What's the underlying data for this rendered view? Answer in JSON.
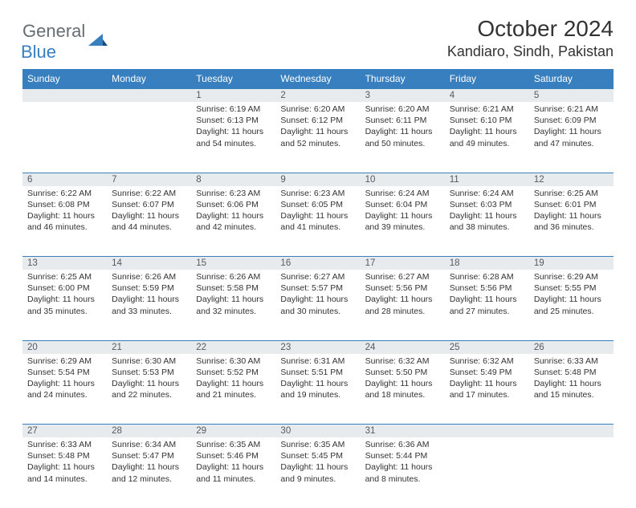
{
  "brand": {
    "part1": "General",
    "part2": "Blue"
  },
  "title": "October 2024",
  "location": "Kandiaro, Sindh, Pakistan",
  "colors": {
    "header_bg": "#377fbf",
    "daynum_bg": "#e8ebed",
    "border": "#377fbf",
    "text": "#333333"
  },
  "typography": {
    "title_size": 28,
    "location_size": 18,
    "header_size": 12,
    "cell_size": 10.5
  },
  "day_headers": [
    "Sunday",
    "Monday",
    "Tuesday",
    "Wednesday",
    "Thursday",
    "Friday",
    "Saturday"
  ],
  "weeks": [
    {
      "nums": [
        "",
        "",
        "1",
        "2",
        "3",
        "4",
        "5"
      ],
      "cells": [
        null,
        null,
        {
          "sunrise": "Sunrise: 6:19 AM",
          "sunset": "Sunset: 6:13 PM",
          "daylight": "Daylight: 11 hours and 54 minutes."
        },
        {
          "sunrise": "Sunrise: 6:20 AM",
          "sunset": "Sunset: 6:12 PM",
          "daylight": "Daylight: 11 hours and 52 minutes."
        },
        {
          "sunrise": "Sunrise: 6:20 AM",
          "sunset": "Sunset: 6:11 PM",
          "daylight": "Daylight: 11 hours and 50 minutes."
        },
        {
          "sunrise": "Sunrise: 6:21 AM",
          "sunset": "Sunset: 6:10 PM",
          "daylight": "Daylight: 11 hours and 49 minutes."
        },
        {
          "sunrise": "Sunrise: 6:21 AM",
          "sunset": "Sunset: 6:09 PM",
          "daylight": "Daylight: 11 hours and 47 minutes."
        }
      ]
    },
    {
      "nums": [
        "6",
        "7",
        "8",
        "9",
        "10",
        "11",
        "12"
      ],
      "cells": [
        {
          "sunrise": "Sunrise: 6:22 AM",
          "sunset": "Sunset: 6:08 PM",
          "daylight": "Daylight: 11 hours and 46 minutes."
        },
        {
          "sunrise": "Sunrise: 6:22 AM",
          "sunset": "Sunset: 6:07 PM",
          "daylight": "Daylight: 11 hours and 44 minutes."
        },
        {
          "sunrise": "Sunrise: 6:23 AM",
          "sunset": "Sunset: 6:06 PM",
          "daylight": "Daylight: 11 hours and 42 minutes."
        },
        {
          "sunrise": "Sunrise: 6:23 AM",
          "sunset": "Sunset: 6:05 PM",
          "daylight": "Daylight: 11 hours and 41 minutes."
        },
        {
          "sunrise": "Sunrise: 6:24 AM",
          "sunset": "Sunset: 6:04 PM",
          "daylight": "Daylight: 11 hours and 39 minutes."
        },
        {
          "sunrise": "Sunrise: 6:24 AM",
          "sunset": "Sunset: 6:03 PM",
          "daylight": "Daylight: 11 hours and 38 minutes."
        },
        {
          "sunrise": "Sunrise: 6:25 AM",
          "sunset": "Sunset: 6:01 PM",
          "daylight": "Daylight: 11 hours and 36 minutes."
        }
      ]
    },
    {
      "nums": [
        "13",
        "14",
        "15",
        "16",
        "17",
        "18",
        "19"
      ],
      "cells": [
        {
          "sunrise": "Sunrise: 6:25 AM",
          "sunset": "Sunset: 6:00 PM",
          "daylight": "Daylight: 11 hours and 35 minutes."
        },
        {
          "sunrise": "Sunrise: 6:26 AM",
          "sunset": "Sunset: 5:59 PM",
          "daylight": "Daylight: 11 hours and 33 minutes."
        },
        {
          "sunrise": "Sunrise: 6:26 AM",
          "sunset": "Sunset: 5:58 PM",
          "daylight": "Daylight: 11 hours and 32 minutes."
        },
        {
          "sunrise": "Sunrise: 6:27 AM",
          "sunset": "Sunset: 5:57 PM",
          "daylight": "Daylight: 11 hours and 30 minutes."
        },
        {
          "sunrise": "Sunrise: 6:27 AM",
          "sunset": "Sunset: 5:56 PM",
          "daylight": "Daylight: 11 hours and 28 minutes."
        },
        {
          "sunrise": "Sunrise: 6:28 AM",
          "sunset": "Sunset: 5:56 PM",
          "daylight": "Daylight: 11 hours and 27 minutes."
        },
        {
          "sunrise": "Sunrise: 6:29 AM",
          "sunset": "Sunset: 5:55 PM",
          "daylight": "Daylight: 11 hours and 25 minutes."
        }
      ]
    },
    {
      "nums": [
        "20",
        "21",
        "22",
        "23",
        "24",
        "25",
        "26"
      ],
      "cells": [
        {
          "sunrise": "Sunrise: 6:29 AM",
          "sunset": "Sunset: 5:54 PM",
          "daylight": "Daylight: 11 hours and 24 minutes."
        },
        {
          "sunrise": "Sunrise: 6:30 AM",
          "sunset": "Sunset: 5:53 PM",
          "daylight": "Daylight: 11 hours and 22 minutes."
        },
        {
          "sunrise": "Sunrise: 6:30 AM",
          "sunset": "Sunset: 5:52 PM",
          "daylight": "Daylight: 11 hours and 21 minutes."
        },
        {
          "sunrise": "Sunrise: 6:31 AM",
          "sunset": "Sunset: 5:51 PM",
          "daylight": "Daylight: 11 hours and 19 minutes."
        },
        {
          "sunrise": "Sunrise: 6:32 AM",
          "sunset": "Sunset: 5:50 PM",
          "daylight": "Daylight: 11 hours and 18 minutes."
        },
        {
          "sunrise": "Sunrise: 6:32 AM",
          "sunset": "Sunset: 5:49 PM",
          "daylight": "Daylight: 11 hours and 17 minutes."
        },
        {
          "sunrise": "Sunrise: 6:33 AM",
          "sunset": "Sunset: 5:48 PM",
          "daylight": "Daylight: 11 hours and 15 minutes."
        }
      ]
    },
    {
      "nums": [
        "27",
        "28",
        "29",
        "30",
        "31",
        "",
        ""
      ],
      "cells": [
        {
          "sunrise": "Sunrise: 6:33 AM",
          "sunset": "Sunset: 5:48 PM",
          "daylight": "Daylight: 11 hours and 14 minutes."
        },
        {
          "sunrise": "Sunrise: 6:34 AM",
          "sunset": "Sunset: 5:47 PM",
          "daylight": "Daylight: 11 hours and 12 minutes."
        },
        {
          "sunrise": "Sunrise: 6:35 AM",
          "sunset": "Sunset: 5:46 PM",
          "daylight": "Daylight: 11 hours and 11 minutes."
        },
        {
          "sunrise": "Sunrise: 6:35 AM",
          "sunset": "Sunset: 5:45 PM",
          "daylight": "Daylight: 11 hours and 9 minutes."
        },
        {
          "sunrise": "Sunrise: 6:36 AM",
          "sunset": "Sunset: 5:44 PM",
          "daylight": "Daylight: 11 hours and 8 minutes."
        },
        null,
        null
      ]
    }
  ]
}
